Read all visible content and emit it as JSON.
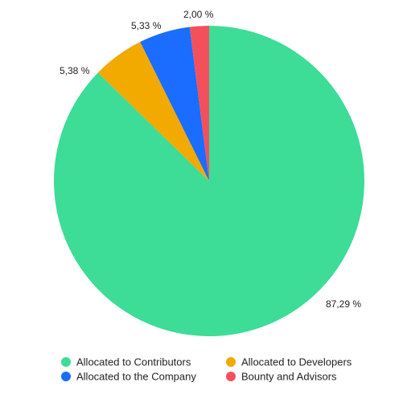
{
  "chart_data": {
    "type": "pie",
    "title": "",
    "legend_placement": "bottom",
    "series": [
      {
        "name": "Allocated to Contributors",
        "value": 87.29,
        "label": "87,29 %",
        "color": "#3ddc97"
      },
      {
        "name": "Allocated to Developers",
        "value": 5.38,
        "label": "5,38 %",
        "color": "#f2a900"
      },
      {
        "name": "Allocated to the Company",
        "value": 5.33,
        "label": "5,33 %",
        "color": "#1a6dff"
      },
      {
        "name": "Bounty and Advisors",
        "value": 2.0,
        "label": "2,00 %",
        "color": "#f4505c"
      }
    ]
  }
}
